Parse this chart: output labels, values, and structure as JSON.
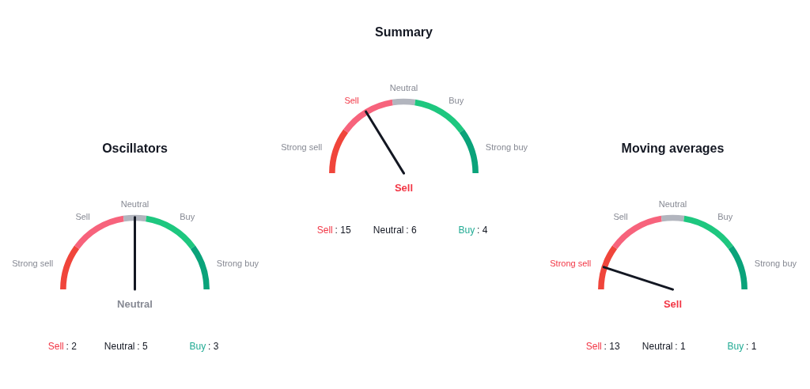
{
  "chart_data": [
    {
      "type": "donut",
      "title": "Oscillators",
      "categories": [
        "Strong sell",
        "Sell",
        "Neutral",
        "Buy",
        "Strong buy"
      ],
      "values": [
        20,
        25,
        10,
        25,
        20
      ],
      "colors": [
        "#f0453b",
        "#f7637c",
        "#b2b5be",
        "#1ec77f",
        "#0aa37a"
      ],
      "needle": "Neutral",
      "annotations": [
        "Neutral",
        "Sell : 2",
        "Neutral : 5",
        "Buy : 3"
      ]
    },
    {
      "type": "donut",
      "title": "Summary",
      "categories": [
        "Strong sell",
        "Sell",
        "Neutral",
        "Buy",
        "Strong buy"
      ],
      "values": [
        20,
        25,
        10,
        25,
        20
      ],
      "colors": [
        "#f0453b",
        "#f7637c",
        "#b2b5be",
        "#1ec77f",
        "#0aa37a"
      ],
      "needle": "Sell",
      "annotations": [
        "Sell",
        "Sell : 15",
        "Neutral : 6",
        "Buy : 4"
      ]
    },
    {
      "type": "donut",
      "title": "Moving averages",
      "categories": [
        "Strong sell",
        "Sell",
        "Neutral",
        "Buy",
        "Strong buy"
      ],
      "values": [
        20,
        25,
        10,
        25,
        20
      ],
      "colors": [
        "#f0453b",
        "#f7637c",
        "#b2b5be",
        "#1ec77f",
        "#0aa37a"
      ],
      "needle": "Strong sell",
      "annotations": [
        "Sell",
        "Sell : 13",
        "Neutral : 1",
        "Buy : 1"
      ]
    }
  ]
}
